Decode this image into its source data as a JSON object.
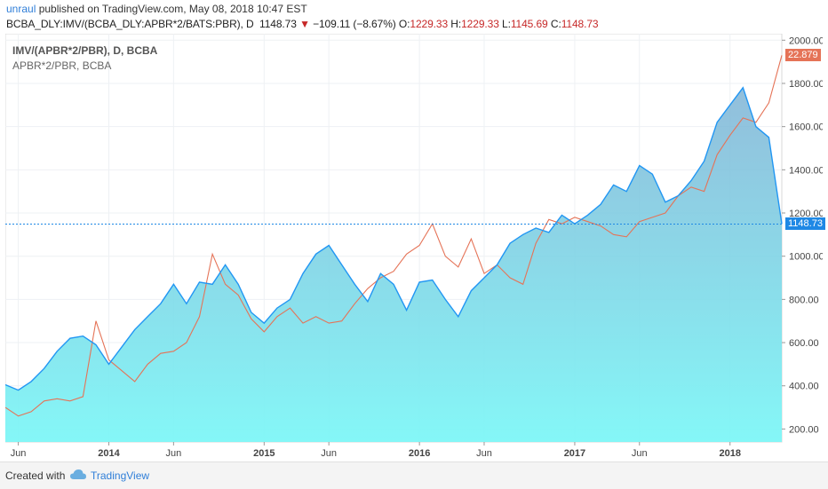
{
  "header": {
    "author": "unraul",
    "published": "published on TradingView.com, May 08, 2018 10:47 EST"
  },
  "ohlc": {
    "symbol": "BCBA_DLY:IMV/(BCBA_DLY:APBR*2/BATS:PBR), D",
    "last": "1148.73",
    "arrow": "▼",
    "change": "−109.11 (−8.67%)",
    "o_label": "O:",
    "o": "1229.33",
    "h_label": "H:",
    "h": "1229.33",
    "l_label": "L:",
    "l": "1145.69",
    "c_label": "C:",
    "c": "1148.73"
  },
  "legend": {
    "main": "IMV/(APBR*2/PBR), D, BCBA",
    "secondary": "APBR*2/PBR, BCBA"
  },
  "footer": {
    "created": "Created with",
    "brand": "TradingView"
  },
  "colors": {
    "main_line": "#2196f3",
    "fill_top": "#7fb3d5",
    "fill_bottom": "#7ef7f7",
    "secondary_line": "#e57357",
    "gray_line": "#888888",
    "price_line": "#1e88e5"
  },
  "chart_data": {
    "type": "area",
    "y_ticks": [
      "2000.00",
      "1800.00",
      "1600.00",
      "1400.00",
      "1200.00",
      "1000.00",
      "800.00",
      "600.00",
      "400.00",
      "200.00"
    ],
    "y_tick_values": [
      2000,
      1800,
      1600,
      1400,
      1200,
      1000,
      800,
      600,
      400,
      200
    ],
    "ylim": [
      140,
      2030
    ],
    "x_ticks": [
      "Jun",
      "2014",
      "Jun",
      "2015",
      "Jun",
      "2016",
      "Jun",
      "2017",
      "Jun",
      "2018"
    ],
    "x_tick_dates": [
      "2013-06",
      "2014-01",
      "2014-06",
      "2015-01",
      "2015-06",
      "2016-01",
      "2016-06",
      "2017-01",
      "2017-06",
      "2018-01"
    ],
    "xlim": [
      "2013-05",
      "2018-05"
    ],
    "last_value_label": "1148.73",
    "last_value": 1148.73,
    "secondary_last_label": "22.879",
    "secondary_last_level": 1930,
    "series": [
      {
        "name": "IMV/(APBR*2/PBR), D, BCBA",
        "x": [
          "2013-05",
          "2013-06",
          "2013-07",
          "2013-08",
          "2013-09",
          "2013-10",
          "2013-11",
          "2013-12",
          "2014-01",
          "2014-02",
          "2014-03",
          "2014-04",
          "2014-05",
          "2014-06",
          "2014-07",
          "2014-08",
          "2014-09",
          "2014-10",
          "2014-11",
          "2014-12",
          "2015-01",
          "2015-02",
          "2015-03",
          "2015-04",
          "2015-05",
          "2015-06",
          "2015-07",
          "2015-08",
          "2015-09",
          "2015-10",
          "2015-11",
          "2015-12",
          "2016-01",
          "2016-02",
          "2016-03",
          "2016-04",
          "2016-05",
          "2016-06",
          "2016-07",
          "2016-08",
          "2016-09",
          "2016-10",
          "2016-11",
          "2016-12",
          "2017-01",
          "2017-02",
          "2017-03",
          "2017-04",
          "2017-05",
          "2017-06",
          "2017-07",
          "2017-08",
          "2017-09",
          "2017-10",
          "2017-11",
          "2017-12",
          "2018-01",
          "2018-02",
          "2018-03",
          "2018-04",
          "2018-05"
        ],
        "values": [
          405,
          380,
          420,
          480,
          560,
          620,
          630,
          590,
          500,
          580,
          660,
          720,
          780,
          870,
          780,
          880,
          870,
          960,
          870,
          740,
          690,
          760,
          800,
          920,
          1010,
          1050,
          960,
          870,
          790,
          920,
          870,
          750,
          880,
          890,
          800,
          720,
          840,
          900,
          960,
          1060,
          1100,
          1130,
          1110,
          1190,
          1150,
          1190,
          1240,
          1330,
          1300,
          1420,
          1380,
          1250,
          1280,
          1350,
          1440,
          1620,
          1700,
          1780,
          1600,
          1550,
          1150
        ]
      },
      {
        "name": "APBR*2/PBR, BCBA",
        "x": [
          "2013-05",
          "2013-06",
          "2013-07",
          "2013-08",
          "2013-09",
          "2013-10",
          "2013-11",
          "2013-12",
          "2014-01",
          "2014-02",
          "2014-03",
          "2014-04",
          "2014-05",
          "2014-06",
          "2014-07",
          "2014-08",
          "2014-09",
          "2014-10",
          "2014-11",
          "2014-12",
          "2015-01",
          "2015-02",
          "2015-03",
          "2015-04",
          "2015-05",
          "2015-06",
          "2015-07",
          "2015-08",
          "2015-09",
          "2015-10",
          "2015-11",
          "2015-12",
          "2016-01",
          "2016-02",
          "2016-03",
          "2016-04",
          "2016-05",
          "2016-06",
          "2016-07",
          "2016-08",
          "2016-09",
          "2016-10",
          "2016-11",
          "2016-12",
          "2017-01",
          "2017-02",
          "2017-03",
          "2017-04",
          "2017-05",
          "2017-06",
          "2017-07",
          "2017-08",
          "2017-09",
          "2017-10",
          "2017-11",
          "2017-12",
          "2018-01",
          "2018-02",
          "2018-03",
          "2018-04",
          "2018-05"
        ],
        "values": [
          300,
          260,
          280,
          330,
          340,
          330,
          350,
          700,
          520,
          470,
          420,
          500,
          550,
          560,
          600,
          720,
          1010,
          870,
          820,
          710,
          650,
          720,
          760,
          690,
          720,
          690,
          700,
          780,
          850,
          900,
          930,
          1010,
          1050,
          1150,
          1000,
          950,
          1080,
          920,
          960,
          900,
          870,
          1060,
          1170,
          1150,
          1180,
          1160,
          1140,
          1100,
          1090,
          1160,
          1180,
          1200,
          1280,
          1320,
          1300,
          1470,
          1560,
          1640,
          1620,
          1710,
          1930
        ]
      }
    ]
  }
}
